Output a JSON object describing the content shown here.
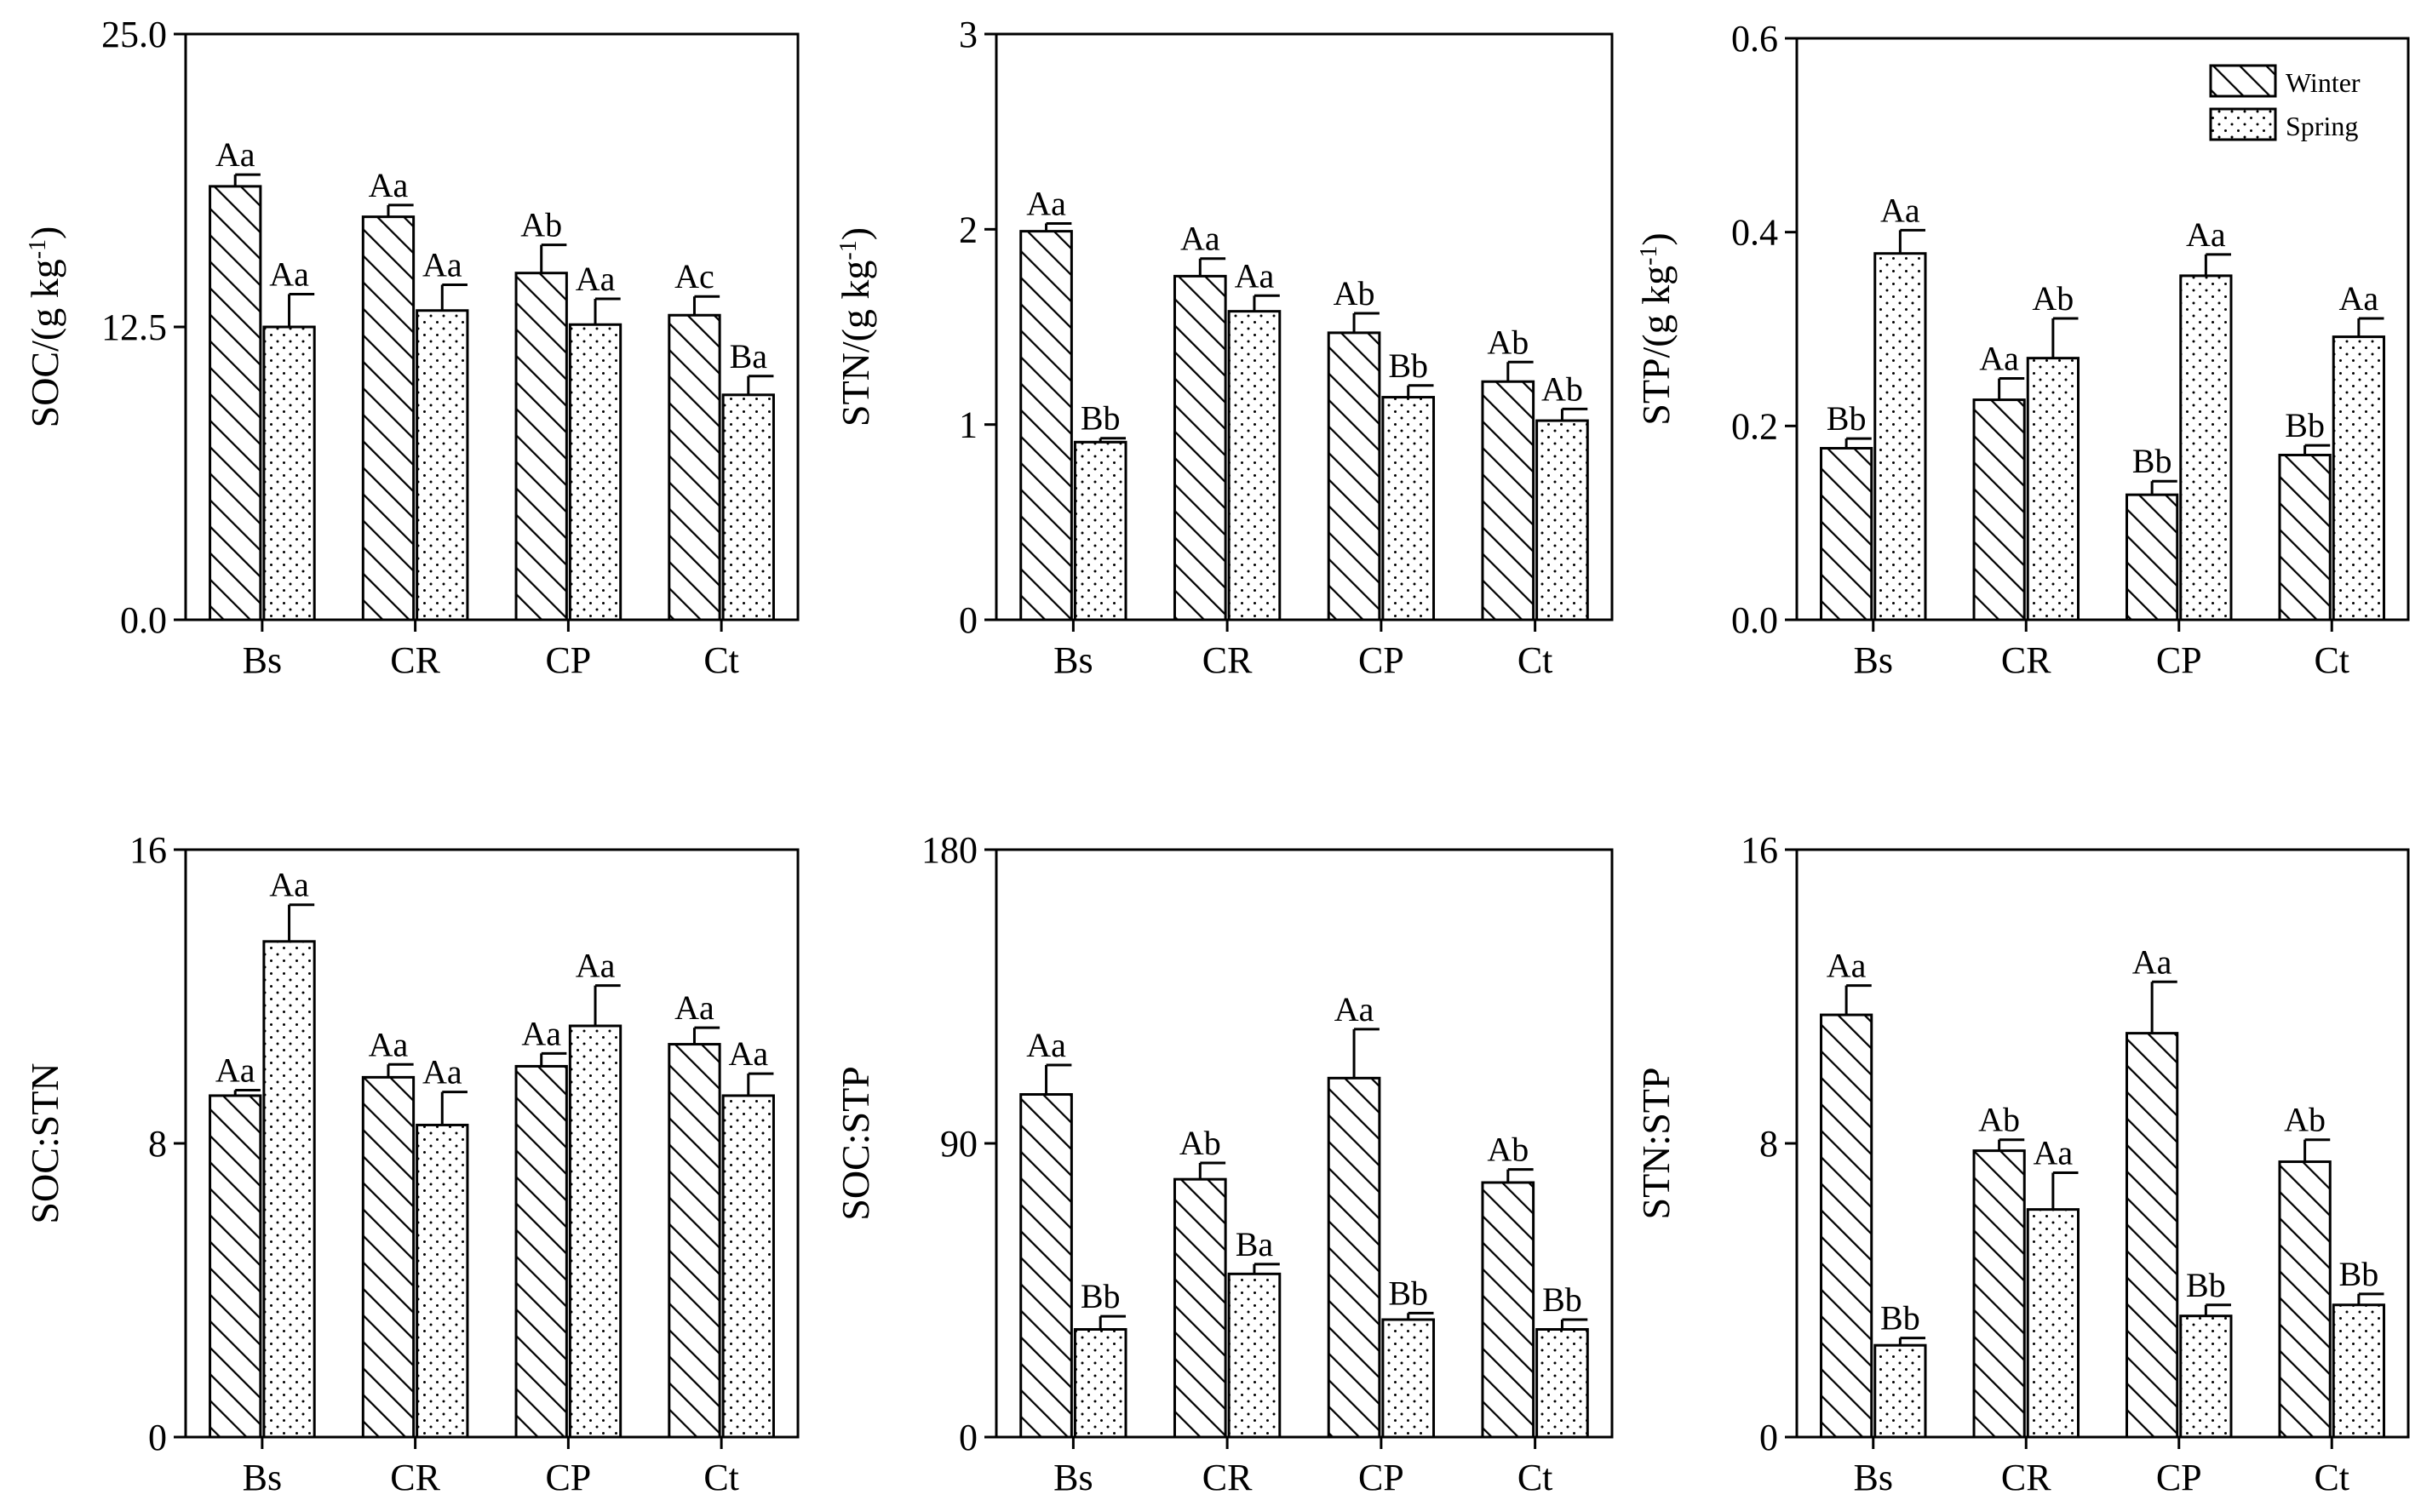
{
  "figure": {
    "legend": {
      "entries": [
        "Winter",
        "Spring"
      ],
      "placement": "top-right of STP panel"
    },
    "colors": {
      "axis": "#000000",
      "bar_fill": "#ffffff",
      "pattern_stroke": "#000000"
    }
  },
  "chart_data": [
    {
      "id": "soc",
      "type": "bar",
      "title": "",
      "ylabel": "SOC/(g kg-1)",
      "ylabel_base": "SOC/(g kg",
      "ylabel_sup": "-1",
      "ylim": [
        0,
        25
      ],
      "yticks": [
        "0.0",
        "12.5",
        "25.0"
      ],
      "categories": [
        "Bs",
        "CR",
        "CP",
        "Ct"
      ],
      "series": [
        {
          "name": "Winter",
          "values": [
            18.5,
            17.2,
            14.8,
            13.0
          ],
          "errors": [
            0.5,
            0.5,
            1.2,
            0.8
          ],
          "letters": [
            "Aa",
            "Aa",
            "Ab",
            "Ac"
          ]
        },
        {
          "name": "Spring",
          "values": [
            12.5,
            13.2,
            12.6,
            9.6
          ],
          "errors": [
            1.4,
            1.1,
            1.1,
            0.8
          ],
          "letters": [
            "Aa",
            "Aa",
            "Aa",
            "Ba"
          ]
        }
      ]
    },
    {
      "id": "stn",
      "type": "bar",
      "title": "",
      "ylabel": "STN/(g kg-1)",
      "ylabel_base": "STN/(g kg",
      "ylabel_sup": "-1",
      "ylim": [
        0,
        3
      ],
      "yticks": [
        "0",
        "1",
        "2",
        "3"
      ],
      "categories": [
        "Bs",
        "CR",
        "CP",
        "Ct"
      ],
      "series": [
        {
          "name": "Winter",
          "values": [
            1.99,
            1.76,
            1.47,
            1.22
          ],
          "errors": [
            0.04,
            0.09,
            0.1,
            0.1
          ],
          "letters": [
            "Aa",
            "Aa",
            "Ab",
            "Ab"
          ]
        },
        {
          "name": "Spring",
          "values": [
            0.91,
            1.58,
            1.14,
            1.02
          ],
          "errors": [
            0.02,
            0.08,
            0.06,
            0.06
          ],
          "letters": [
            "Bb",
            "Aa",
            "Bb",
            "Ab"
          ]
        }
      ]
    },
    {
      "id": "stp",
      "type": "bar",
      "title": "",
      "ylabel": "STP/(g kg-1)",
      "ylabel_base": "STP/(g kg",
      "ylabel_sup": "-1",
      "ylim": [
        0,
        0.6
      ],
      "yticks": [
        "0.0",
        "0.2",
        "0.4",
        "0.6"
      ],
      "categories": [
        "Bs",
        "CR",
        "CP",
        "Ct"
      ],
      "series": [
        {
          "name": "Winter",
          "values": [
            0.177,
            0.227,
            0.129,
            0.17
          ],
          "errors": [
            0.01,
            0.022,
            0.014,
            0.01
          ],
          "letters": [
            "Bb",
            "Aa",
            "Bb",
            "Bb"
          ]
        },
        {
          "name": "Spring",
          "values": [
            0.378,
            0.27,
            0.355,
            0.292
          ],
          "errors": [
            0.024,
            0.041,
            0.022,
            0.019
          ],
          "letters": [
            "Aa",
            "Ab",
            "Aa",
            "Aa"
          ]
        }
      ]
    },
    {
      "id": "soc-stn",
      "type": "bar",
      "title": "",
      "ylabel": "SOC:STN",
      "ylabel_base": "SOC:STN",
      "ylabel_sup": "",
      "ylim": [
        0,
        16
      ],
      "yticks": [
        "0",
        "8",
        "16"
      ],
      "categories": [
        "Bs",
        "CR",
        "CP",
        "Ct"
      ],
      "series": [
        {
          "name": "Winter",
          "values": [
            9.3,
            9.8,
            10.1,
            10.7
          ],
          "errors": [
            0.15,
            0.35,
            0.35,
            0.45
          ],
          "letters": [
            "Aa",
            "Aa",
            "Aa",
            "Aa"
          ]
        },
        {
          "name": "Spring",
          "values": [
            13.5,
            8.5,
            11.2,
            9.3
          ],
          "errors": [
            1.0,
            0.9,
            1.1,
            0.6
          ],
          "letters": [
            "Aa",
            "Aa",
            "Aa",
            "Aa"
          ]
        }
      ]
    },
    {
      "id": "soc-stp",
      "type": "bar",
      "title": "",
      "ylabel": "SOC:STP",
      "ylabel_base": "SOC:STP",
      "ylabel_sup": "",
      "ylim": [
        0,
        180
      ],
      "yticks": [
        "0",
        "90",
        "180"
      ],
      "categories": [
        "Bs",
        "CR",
        "CP",
        "Ct"
      ],
      "series": [
        {
          "name": "Winter",
          "values": [
            105,
            79,
            110,
            78
          ],
          "errors": [
            9,
            5,
            15,
            4
          ],
          "letters": [
            "Aa",
            "Ab",
            "Aa",
            "Ab"
          ]
        },
        {
          "name": "Spring",
          "values": [
            33,
            50,
            36,
            33
          ],
          "errors": [
            4,
            3,
            2,
            3
          ],
          "letters": [
            "Bb",
            "Ba",
            "Bb",
            "Bb"
          ]
        }
      ]
    },
    {
      "id": "stn-stp",
      "type": "bar",
      "title": "",
      "ylabel": "STN:STP",
      "ylabel_base": "STN:STP",
      "ylabel_sup": "",
      "ylim": [
        0,
        16
      ],
      "yticks": [
        "0",
        "8",
        "16"
      ],
      "categories": [
        "Bs",
        "CR",
        "CP",
        "Ct"
      ],
      "series": [
        {
          "name": "Winter",
          "values": [
            11.5,
            7.8,
            11.0,
            7.5
          ],
          "errors": [
            0.8,
            0.3,
            1.4,
            0.6
          ],
          "letters": [
            "Aa",
            "Ab",
            "Aa",
            "Ab"
          ]
        },
        {
          "name": "Spring",
          "values": [
            2.5,
            6.2,
            3.3,
            3.6
          ],
          "errors": [
            0.2,
            1.0,
            0.3,
            0.3
          ],
          "letters": [
            "Bb",
            "Aa",
            "Bb",
            "Bb"
          ]
        }
      ]
    }
  ]
}
